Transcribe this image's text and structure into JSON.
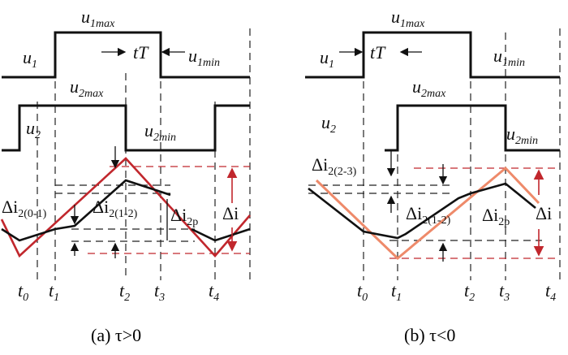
{
  "panel_a": {
    "u1": "u",
    "u1_sub": "1",
    "u1max": "u",
    "u1max_sub": "1max",
    "u1min": "u",
    "u1min_sub": "1min",
    "tT": "tT",
    "u2": "u",
    "u2_sub": "2",
    "u2max": "u",
    "u2max_sub": "2max",
    "u2min": "u",
    "u2min_sub": "2min",
    "di01": "Δi",
    "di01_sub": "2(0-1)",
    "di12": "Δi",
    "di12_sub": "2(1-2)",
    "di2p": "Δi",
    "di2p_sub": "2p",
    "di": "Δi",
    "t0": "t",
    "t0_sub": "0",
    "t1": "t",
    "t1_sub": "1",
    "t2": "t",
    "t2_sub": "2",
    "t3": "t",
    "t3_sub": "3",
    "t4": "t",
    "t4_sub": "4",
    "caption": "(a) τ>0"
  },
  "panel_b": {
    "u1": "u",
    "u1_sub": "1",
    "u1max": "u",
    "u1max_sub": "1max",
    "u1min": "u",
    "u1min_sub": "1min",
    "tT": "tT",
    "u2": "u",
    "u2_sub": "2",
    "u2max": "u",
    "u2max_sub": "2max",
    "u2min": "u",
    "u2min_sub": "2min",
    "di23": "Δi",
    "di23_sub": "2(2-3)",
    "di12": "Δi",
    "di12_sub": "2(1-2)",
    "di2p": "Δi",
    "di2p_sub": "2p",
    "di": "Δi",
    "t0": "t",
    "t0_sub": "0",
    "t1": "t",
    "t1_sub": "1",
    "t2": "t",
    "t2_sub": "2",
    "t3": "t",
    "t3_sub": "3",
    "t4": "t",
    "t4_sub": "4",
    "caption": "(b) τ<0"
  },
  "colors": {
    "trace": "#111111",
    "red": "#c1272d",
    "orange": "#ee8a6a"
  }
}
